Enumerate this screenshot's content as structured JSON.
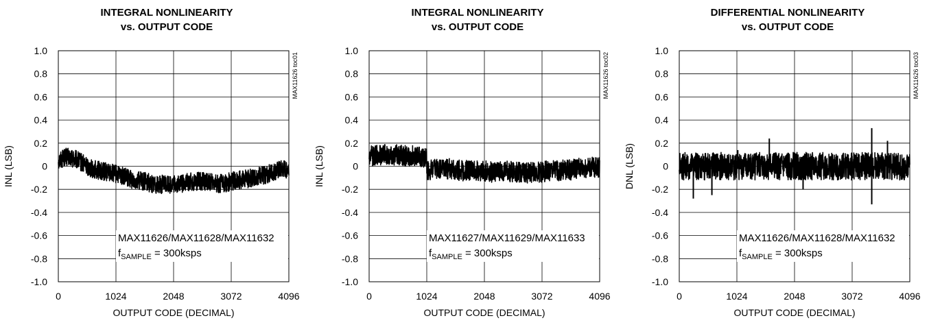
{
  "chart_data": [
    {
      "type": "line",
      "title": "INTEGRAL NONLINEARITY",
      "subtitle": "vs. OUTPUT CODE",
      "xlabel": "OUTPUT CODE (DECIMAL)",
      "ylabel": "INL (LSB)",
      "xlim": [
        0,
        4096
      ],
      "ylim": [
        -1.0,
        1.0
      ],
      "xticks": [
        "0",
        "1024",
        "2048",
        "3072",
        "4096"
      ],
      "yticks": [
        "1.0",
        "0.8",
        "0.6",
        "0.4",
        "0.2",
        "0",
        "-0.2",
        "-0.4",
        "-0.6",
        "-0.8",
        "-1.0"
      ],
      "grid": true,
      "legend_lines": [
        "MAX11626/MAX11628/MAX11632",
        "= 300ksps"
      ],
      "legend_symbol": "f",
      "legend_symbol_sub": "SAMPLE",
      "side_code": "MAX11626 toc01",
      "series": [
        {
          "x": [
            0,
            128,
            256,
            384,
            512,
            640,
            768,
            896,
            1024,
            1152,
            1280,
            1408,
            1536,
            1664,
            1792,
            1920,
            2048,
            2176,
            2304,
            2432,
            2560,
            2688,
            2816,
            2944,
            3072,
            3200,
            3328,
            3456,
            3584,
            3712,
            3840,
            3968,
            4096
          ],
          "y": [
            0.05,
            0.08,
            0.07,
            0.04,
            0.0,
            -0.03,
            -0.04,
            -0.05,
            -0.07,
            -0.09,
            -0.11,
            -0.12,
            -0.13,
            -0.15,
            -0.16,
            -0.15,
            -0.16,
            -0.15,
            -0.14,
            -0.13,
            -0.13,
            -0.14,
            -0.15,
            -0.15,
            -0.13,
            -0.12,
            -0.11,
            -0.1,
            -0.08,
            -0.07,
            -0.05,
            -0.03,
            -0.02
          ],
          "noise_band": 0.08
        }
      ]
    },
    {
      "type": "line",
      "title": "INTEGRAL NONLINEARITY",
      "subtitle": "vs. OUTPUT CODE",
      "xlabel": "OUTPUT CODE (DECIMAL)",
      "ylabel": "INL (LSB)",
      "xlim": [
        0,
        4096
      ],
      "ylim": [
        -1.0,
        1.0
      ],
      "xticks": [
        "0",
        "1024",
        "2048",
        "3072",
        "4096"
      ],
      "yticks": [
        "1.0",
        "0.8",
        "0.6",
        "0.4",
        "0.2",
        "0",
        "-0.2",
        "-0.4",
        "-0.6",
        "-0.8",
        "-1.0"
      ],
      "grid": true,
      "legend_lines": [
        "MAX11627/MAX11629/MAX11633",
        "= 300ksps"
      ],
      "legend_symbol": "f",
      "legend_symbol_sub": "SAMPLE",
      "side_code": "MAX11626 toc02",
      "series": [
        {
          "x": [
            0,
            128,
            256,
            384,
            512,
            640,
            768,
            896,
            1023,
            1024,
            1152,
            1280,
            1408,
            1536,
            1664,
            1792,
            1920,
            2048,
            2176,
            2304,
            2432,
            2560,
            2688,
            2816,
            2944,
            3072,
            3200,
            3328,
            3456,
            3584,
            3712,
            3840,
            3968,
            4096
          ],
          "y": [
            0.08,
            0.1,
            0.1,
            0.1,
            0.1,
            0.09,
            0.09,
            0.08,
            0.07,
            -0.04,
            -0.03,
            -0.03,
            -0.02,
            -0.03,
            -0.04,
            -0.03,
            -0.04,
            -0.04,
            -0.05,
            -0.05,
            -0.04,
            -0.05,
            -0.05,
            -0.06,
            -0.05,
            -0.05,
            -0.04,
            -0.04,
            -0.03,
            -0.03,
            -0.02,
            -0.02,
            -0.01,
            -0.01
          ],
          "noise_band": 0.09
        }
      ]
    },
    {
      "type": "line",
      "title": "DIFFERENTIAL NONLINEARITY",
      "subtitle": "vs. OUTPUT CODE",
      "xlabel": "OUTPUT CODE (DECIMAL)",
      "ylabel": "DNL (LSB)",
      "xlim": [
        0,
        4096
      ],
      "ylim": [
        -1.0,
        1.0
      ],
      "xticks": [
        "0",
        "1024",
        "2048",
        "3072",
        "4096"
      ],
      "yticks": [
        "1.0",
        "0.8",
        "0.6",
        "0.4",
        "0.2",
        "0",
        "-0.2",
        "-0.4",
        "-0.6",
        "-0.8",
        "-1.0"
      ],
      "grid": true,
      "legend_lines": [
        "MAX11626/MAX11628/MAX11632",
        "= 300ksps"
      ],
      "legend_symbol": "f",
      "legend_symbol_sub": "SAMPLE",
      "side_code": "MAX11626 toc03",
      "series": [
        {
          "x": [
            0,
            256,
            512,
            768,
            1024,
            1280,
            1536,
            1792,
            2048,
            2304,
            2560,
            2816,
            3072,
            3328,
            3584,
            3840,
            4096
          ],
          "y": [
            0.0,
            0.0,
            0.0,
            0.0,
            0.0,
            0.0,
            0.0,
            0.0,
            0.0,
            0.0,
            0.0,
            0.0,
            0.0,
            0.0,
            0.0,
            0.0,
            0.0
          ],
          "noise_band": 0.12,
          "spikes": [
            {
              "x": 250,
              "y": -0.28
            },
            {
              "x": 580,
              "y": -0.25
            },
            {
              "x": 1040,
              "y": 0.14
            },
            {
              "x": 1600,
              "y": 0.24
            },
            {
              "x": 2200,
              "y": -0.2
            },
            {
              "x": 3420,
              "y": 0.33
            },
            {
              "x": 3420,
              "y": -0.33
            },
            {
              "x": 3700,
              "y": 0.22
            }
          ]
        }
      ]
    }
  ]
}
